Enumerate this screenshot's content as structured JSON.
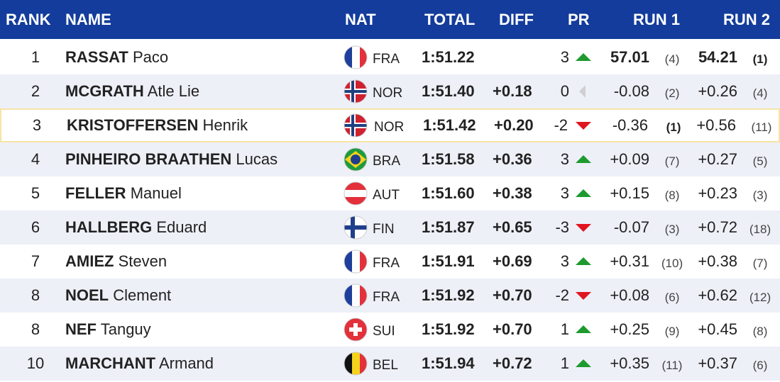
{
  "header": {
    "columns": [
      "RANK",
      "NAME",
      "NAT",
      "TOTAL",
      "DIFF",
      "PR",
      "RUN 1",
      "RUN 2"
    ]
  },
  "table": {
    "rows": [
      [
        "1",
        "RASSAT",
        "Paco",
        "FRA",
        "1:51.22",
        "",
        3,
        "57.01",
        "(4)",
        "54.21",
        "(1)"
      ],
      [
        "2",
        "MCGRATH",
        "Atle Lie",
        "NOR",
        "1:51.40",
        "+0.18",
        0,
        "-0.08",
        "(2)",
        "+0.26",
        "(4)"
      ],
      [
        "3",
        "KRISTOFFERSEN",
        "Henrik",
        "NOR",
        "1:51.42",
        "+0.20",
        -2,
        "-0.36",
        "(1)",
        "+0.56",
        "(11)"
      ],
      [
        "4",
        "PINHEIRO BRAATHEN",
        "Lucas",
        "BRA",
        "1:51.58",
        "+0.36",
        3,
        "+0.09",
        "(7)",
        "+0.27",
        "(5)"
      ],
      [
        "5",
        "FELLER",
        "Manuel",
        "AUT",
        "1:51.60",
        "+0.38",
        3,
        "+0.15",
        "(8)",
        "+0.23",
        "(3)"
      ],
      [
        "6",
        "HALLBERG",
        "Eduard",
        "FIN",
        "1:51.87",
        "+0.65",
        -3,
        "-0.07",
        "(3)",
        "+0.72",
        "(18)"
      ],
      [
        "7",
        "AMIEZ",
        "Steven",
        "FRA",
        "1:51.91",
        "+0.69",
        3,
        "+0.31",
        "(10)",
        "+0.38",
        "(7)"
      ],
      [
        "8",
        "NOEL",
        "Clement",
        "FRA",
        "1:51.92",
        "+0.70",
        -2,
        "+0.08",
        "(6)",
        "+0.62",
        "(12)"
      ],
      [
        "8",
        "NEF",
        "Tanguy",
        "SUI",
        "1:51.92",
        "+0.70",
        1,
        "+0.25",
        "(9)",
        "+0.45",
        "(8)"
      ],
      [
        "10",
        "MARCHANT",
        "Armand",
        "BEL",
        "1:51.94",
        "+0.72",
        1,
        "+0.35",
        "(11)",
        "+0.37",
        "(6)"
      ]
    ]
  }
}
